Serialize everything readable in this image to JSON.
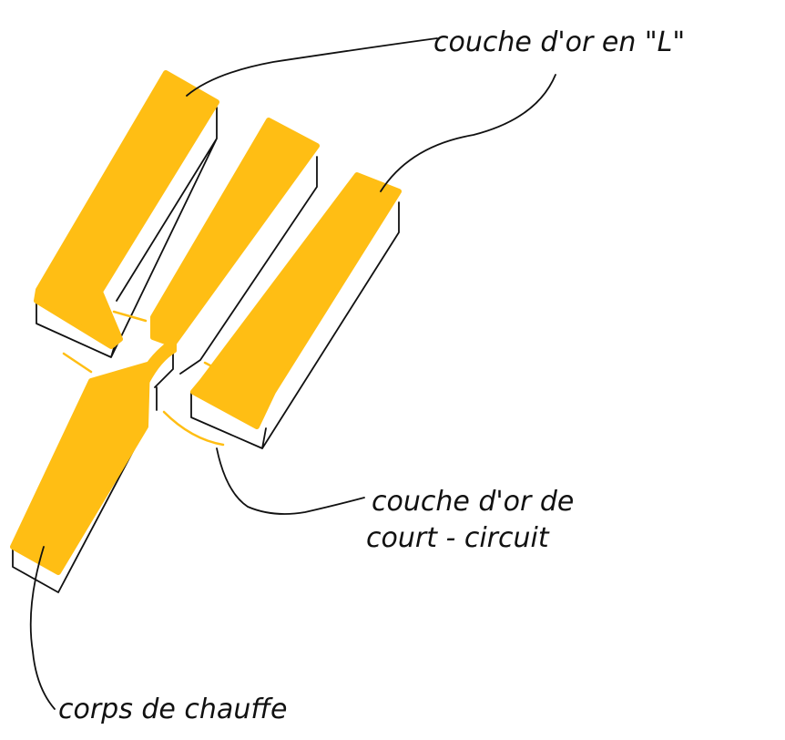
{
  "labels": {
    "l_gold_layer": "couche d'or en \"L\"",
    "short_circuit_line1": "couche d'or de",
    "short_circuit_line2": "court - circuit",
    "heater_body": "corps de chauffe"
  },
  "colors": {
    "gold": "#FFBE14",
    "ink": "#111111",
    "background": "#ffffff"
  }
}
